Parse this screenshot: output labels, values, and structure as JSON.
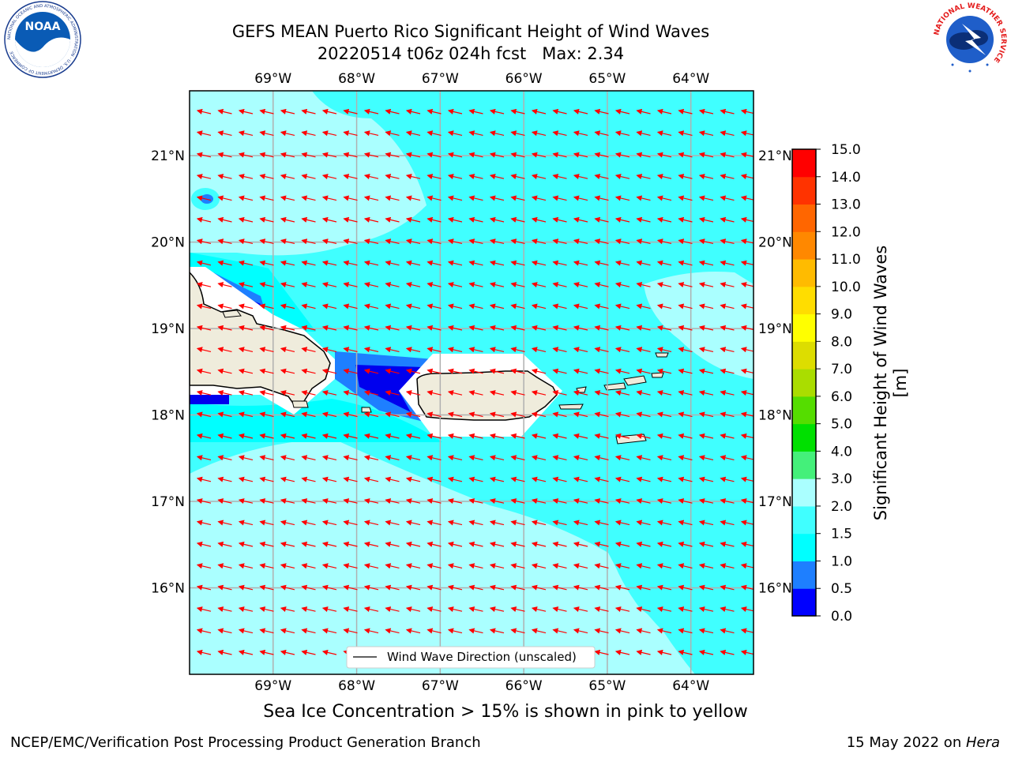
{
  "header": {
    "title": "GEFS MEAN Puerto Rico Significant Height of Wind Waves",
    "subtitle": "20220514 t06z 024h fcst   Max: 2.34"
  },
  "logos": {
    "noaa_text": "NOAA",
    "noaa_ring": "NATIONAL OCEANIC AND ATMOSPHERIC ADMINISTRATION · U.S. DEPARTMENT OF COMMERCE",
    "nws_ring": "NATIONAL WEATHER SERVICE"
  },
  "map": {
    "lon_labels": [
      "69°W",
      "68°W",
      "67°W",
      "66°W",
      "65°W",
      "64°W"
    ],
    "lat_labels": [
      "21°N",
      "20°N",
      "19°N",
      "18°N",
      "17°N",
      "16°N"
    ],
    "lon_values": [
      -69,
      -68,
      -67,
      -66,
      -65,
      -64
    ],
    "lat_values": [
      21,
      20,
      19,
      18,
      17,
      16
    ],
    "extent": {
      "lon_min": -70,
      "lon_max": -63.25,
      "lat_min": 15,
      "lat_max": 21.75
    },
    "legend_label": "Wind Wave Direction (unscaled)",
    "colors": {
      "land": "#efecdc",
      "arrow": "#ff0000",
      "grid": "#b0b0b0"
    }
  },
  "colorbar": {
    "label": "Significant Height of Wind Waves [m]",
    "ticks": [
      "0.0",
      "0.5",
      "1.0",
      "1.5",
      "2.0",
      "3.0",
      "4.0",
      "5.0",
      "6.0",
      "7.0",
      "8.0",
      "9.0",
      "10.0",
      "11.0",
      "12.0",
      "13.0",
      "14.0",
      "15.0"
    ],
    "colors": [
      "#0000ff",
      "#1e7fff",
      "#00ffff",
      "#40ffff",
      "#aaffff",
      "#44f07a",
      "#00e000",
      "#55dd00",
      "#aadd00",
      "#dddd00",
      "#ffff00",
      "#ffdd00",
      "#ffbb00",
      "#ff8800",
      "#ff6600",
      "#ff3300",
      "#ff0000"
    ]
  },
  "footer": {
    "sea_ice_note": "Sea Ice Concentration > 15% is shown in pink to yellow",
    "left": "NCEP/EMC/Verification Post Processing Product Generation Branch",
    "right_date": "15 May 2022 on ",
    "right_host": "Hera"
  }
}
